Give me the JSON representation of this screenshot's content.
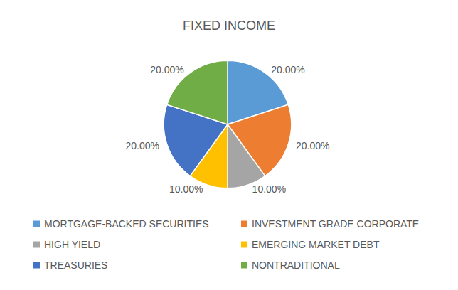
{
  "chart_data": {
    "type": "pie",
    "title": "FIXED INCOME",
    "categories": [
      "MORTGAGE-BACKED SECURITIES",
      "INVESTMENT GRADE CORPORATE",
      "HIGH YIELD",
      "EMERGING MARKET DEBT",
      "TREASURIES",
      "NONTRADITIONAL"
    ],
    "values": [
      20,
      20,
      10,
      10,
      20,
      20
    ],
    "value_labels": [
      "20.00%",
      "20.00%",
      "10.00%",
      "10.00%",
      "20.00%",
      "20.00%"
    ],
    "colors": [
      "#5b9bd5",
      "#ed7d31",
      "#a5a5a5",
      "#ffc000",
      "#4472c4",
      "#70ad47"
    ],
    "data_labels": true,
    "legend": "bottom"
  }
}
